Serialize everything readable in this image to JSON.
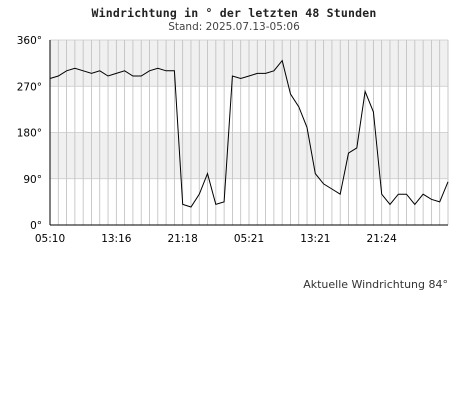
{
  "header": {
    "title": "Windrichtung in ° der letzten 48 Stunden",
    "subtitle": "Stand: 2025.07.13-05:06"
  },
  "footer": {
    "current_label": "Aktuelle Windrichtung 84°"
  },
  "chart_data": {
    "type": "line",
    "title": "Windrichtung in ° der letzten 48 Stunden",
    "subtitle": "Stand: 2025.07.13-05:06",
    "xlabel": "",
    "ylabel": "",
    "ylim": [
      0,
      360
    ],
    "xlim_hours": [
      0,
      48
    ],
    "yticks": [
      0,
      90,
      180,
      270,
      360
    ],
    "ytick_labels": [
      "0°",
      "90°",
      "180°",
      "270°",
      "360°"
    ],
    "xticks": [
      0,
      8,
      16,
      24,
      32,
      40
    ],
    "xtick_labels": [
      "05:10",
      "13:16",
      "21:18",
      "05:21",
      "13:21",
      "21:24"
    ],
    "grid": true,
    "band_color": "#f0f0f0",
    "line_color": "#000000",
    "series": [
      {
        "x": [
          0,
          1,
          2,
          3,
          4,
          5,
          6,
          7,
          8,
          9,
          10,
          11,
          12,
          13,
          14,
          15,
          16,
          17,
          18,
          19,
          20,
          21,
          22,
          23,
          24,
          25,
          26,
          27,
          28,
          29,
          30,
          31,
          32,
          33,
          34,
          35,
          36,
          37,
          38,
          39,
          40,
          41,
          42,
          43,
          44,
          45,
          46,
          47,
          48
        ],
        "values": [
          285,
          290,
          300,
          305,
          300,
          295,
          300,
          290,
          295,
          300,
          290,
          290,
          300,
          305,
          300,
          300,
          40,
          35,
          60,
          100,
          40,
          45,
          290,
          285,
          290,
          295,
          295,
          300,
          320,
          255,
          230,
          190,
          100,
          80,
          70,
          60,
          140,
          150,
          260,
          220,
          60,
          40,
          60,
          60,
          40,
          60,
          50,
          45,
          84
        ]
      }
    ]
  }
}
